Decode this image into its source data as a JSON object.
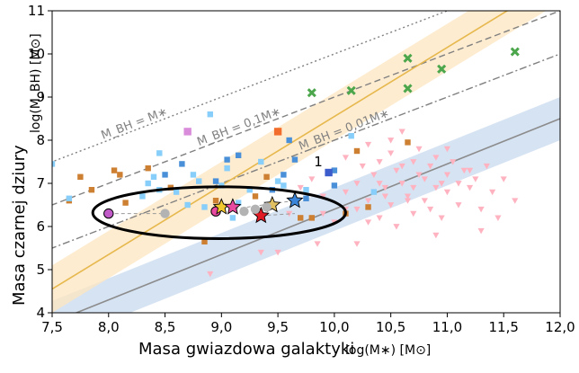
{
  "chart_data": {
    "type": "scatter",
    "title": "",
    "xlabel": "Masa gwiazdowa galaktyki",
    "xlabel_unit": "log(M∗) [M⊙]",
    "ylabel": "Masa czarnej dziury",
    "ylabel_unit": "log(M_BH) [M⊙]",
    "xlim": [
      7.5,
      12.0
    ],
    "ylim": [
      4,
      11
    ],
    "xticks": [
      7.5,
      8.0,
      8.5,
      9.0,
      9.5,
      10.0,
      10.5,
      11.0,
      11.5,
      12.0
    ],
    "xtick_labels": [
      "7,5",
      "8,0",
      "8,5",
      "9,0",
      "9,5",
      "10,0",
      "10,5",
      "11,0",
      "11,5",
      "12,0"
    ],
    "yticks": [
      4,
      5,
      6,
      7,
      8,
      9,
      10,
      11
    ],
    "ytick_labels": [
      "4",
      "5",
      "6",
      "7",
      "8",
      "9",
      "10",
      "11"
    ],
    "colors": {
      "pink": "#ffb3c1",
      "orange": "#cd7f32",
      "lightblue": "#87cefa",
      "blue": "#4a90d9",
      "green": "#4ca64c",
      "gold_line": "#e6b84d",
      "gray_line": "#8c8c8c",
      "orange_band": "#fde5c0",
      "blue_band": "#c8d9ef",
      "violet": "#c05bc8",
      "magenta": "#e84aa0",
      "red_star": "#e01b24",
      "yellow_star": "#f2c82f",
      "lilac": "#d98cd9",
      "orange_square": "#f26d2c",
      "navy": "#3c5ccc"
    },
    "reference_lines": [
      {
        "name": "MBH = M*",
        "label": "M_BH = M∗",
        "offset": 0,
        "style": "dotted"
      },
      {
        "name": "MBH = 0.1M*",
        "label": "M_BH = 0,1M∗",
        "offset": -1,
        "style": "dashed"
      },
      {
        "name": "MBH = 0.01M*",
        "label": "M_BH = 0,01M∗",
        "offset": -2,
        "style": "dashdot"
      }
    ],
    "relations": [
      {
        "name": "gold relation",
        "slope": 1.6,
        "intercept": -7.45,
        "band_halfwidth": 0.55,
        "color": "gold"
      },
      {
        "name": "gray relation",
        "slope": 1.05,
        "intercept": -4.1,
        "band_halfwidth": 0.5,
        "color": "gray"
      }
    ],
    "series": [
      {
        "name": "pink triangles",
        "marker": "triangle-down",
        "color": "pink",
        "points": [
          [
            9.6,
            6.3
          ],
          [
            9.7,
            6.9
          ],
          [
            9.8,
            7.1
          ],
          [
            9.9,
            6.7
          ],
          [
            10.0,
            7.3
          ],
          [
            10.0,
            6.1
          ],
          [
            10.1,
            7.6
          ],
          [
            10.1,
            6.8
          ],
          [
            10.15,
            8.1
          ],
          [
            10.2,
            7.0
          ],
          [
            10.2,
            6.4
          ],
          [
            10.25,
            7.4
          ],
          [
            10.3,
            7.9
          ],
          [
            10.3,
            6.6
          ],
          [
            10.35,
            7.2
          ],
          [
            10.4,
            7.5
          ],
          [
            10.4,
            6.2
          ],
          [
            10.45,
            6.9
          ],
          [
            10.5,
            7.7
          ],
          [
            10.5,
            6.5
          ],
          [
            10.55,
            7.3
          ],
          [
            10.6,
            7.0
          ],
          [
            10.6,
            8.2
          ],
          [
            10.65,
            6.7
          ],
          [
            10.7,
            7.5
          ],
          [
            10.7,
            6.3
          ],
          [
            10.75,
            7.8
          ],
          [
            10.8,
            7.1
          ],
          [
            10.8,
            6.6
          ],
          [
            10.85,
            7.4
          ],
          [
            10.9,
            6.9
          ],
          [
            10.9,
            7.6
          ],
          [
            10.95,
            6.2
          ],
          [
            11.0,
            7.2
          ],
          [
            11.0,
            6.8
          ],
          [
            11.05,
            7.5
          ],
          [
            11.1,
            7.0
          ],
          [
            11.1,
            6.5
          ],
          [
            11.15,
            7.3
          ],
          [
            11.2,
            6.9
          ],
          [
            11.25,
            7.1
          ],
          [
            11.3,
            6.4
          ],
          [
            11.35,
            7.4
          ],
          [
            11.4,
            6.8
          ],
          [
            11.5,
            7.1
          ],
          [
            11.6,
            6.6
          ],
          [
            10.55,
            6.0
          ],
          [
            10.9,
            5.8
          ],
          [
            10.2,
            5.6
          ],
          [
            11.3,
            5.9
          ],
          [
            10.4,
            7.0
          ],
          [
            10.6,
            7.4
          ],
          [
            10.7,
            6.9
          ],
          [
            10.85,
            6.4
          ],
          [
            11.0,
            7.8
          ],
          [
            10.3,
            6.1
          ],
          [
            9.9,
            6.3
          ],
          [
            10.1,
            6.4
          ],
          [
            10.45,
            6.7
          ],
          [
            10.65,
            6.6
          ],
          [
            11.45,
            6.2
          ],
          [
            9.5,
            5.4
          ],
          [
            9.35,
            5.4
          ],
          [
            9.85,
            5.6
          ],
          [
            8.9,
            4.9
          ],
          [
            10.5,
            8.0
          ],
          [
            10.75,
            7.2
          ],
          [
            10.95,
            7.0
          ],
          [
            11.2,
            7.3
          ]
        ]
      },
      {
        "name": "orange squares",
        "marker": "square",
        "color": "orange",
        "points": [
          [
            7.65,
            6.6
          ],
          [
            7.75,
            7.15
          ],
          [
            7.85,
            6.85
          ],
          [
            8.05,
            7.3
          ],
          [
            8.1,
            7.2
          ],
          [
            8.15,
            6.55
          ],
          [
            8.35,
            7.35
          ],
          [
            8.55,
            6.9
          ],
          [
            8.85,
            5.65
          ],
          [
            8.95,
            6.6
          ],
          [
            9.3,
            6.7
          ],
          [
            9.4,
            7.15
          ],
          [
            9.7,
            6.2
          ],
          [
            9.8,
            6.2
          ],
          [
            10.1,
            6.3
          ],
          [
            10.2,
            7.75
          ],
          [
            10.65,
            7.95
          ],
          [
            10.3,
            6.45
          ]
        ]
      },
      {
        "name": "light blue squares",
        "marker": "square",
        "color": "lightblue",
        "points": [
          [
            7.5,
            7.45
          ],
          [
            7.65,
            6.65
          ],
          [
            8.3,
            6.7
          ],
          [
            8.35,
            7.0
          ],
          [
            8.4,
            7.15
          ],
          [
            8.45,
            6.85
          ],
          [
            8.45,
            7.7
          ],
          [
            8.6,
            6.8
          ],
          [
            8.7,
            6.5
          ],
          [
            8.75,
            7.2
          ],
          [
            8.8,
            7.05
          ],
          [
            8.85,
            6.45
          ],
          [
            8.9,
            8.6
          ],
          [
            9.05,
            7.35
          ],
          [
            9.1,
            6.2
          ],
          [
            9.15,
            6.55
          ],
          [
            9.25,
            6.85
          ],
          [
            9.35,
            7.5
          ],
          [
            9.5,
            7.05
          ],
          [
            9.55,
            6.95
          ],
          [
            9.75,
            6.85
          ],
          [
            10.15,
            8.1
          ],
          [
            10.35,
            6.8
          ],
          [
            9.0,
            6.95
          ]
        ]
      },
      {
        "name": "blue squares",
        "marker": "square",
        "color": "blue",
        "points": [
          [
            8.5,
            7.2
          ],
          [
            8.65,
            7.45
          ],
          [
            8.95,
            6.35
          ],
          [
            8.95,
            7.05
          ],
          [
            9.05,
            7.55
          ],
          [
            9.1,
            6.45
          ],
          [
            9.15,
            7.65
          ],
          [
            9.45,
            6.85
          ],
          [
            9.55,
            7.2
          ],
          [
            9.6,
            8.0
          ],
          [
            9.65,
            7.55
          ],
          [
            9.75,
            6.65
          ],
          [
            10.0,
            6.95
          ],
          [
            10.0,
            7.3
          ]
        ]
      },
      {
        "name": "green crosses",
        "marker": "x",
        "color": "green",
        "points": [
          [
            9.8,
            9.1
          ],
          [
            10.15,
            9.15
          ],
          [
            10.65,
            9.9
          ],
          [
            10.65,
            9.2
          ],
          [
            10.95,
            9.65
          ],
          [
            11.6,
            10.05
          ]
        ]
      }
    ],
    "special_points": [
      {
        "name": "lilac square",
        "x": 8.7,
        "y": 8.2,
        "marker": "square",
        "color": "lilac"
      },
      {
        "name": "orange square",
        "x": 9.5,
        "y": 8.2,
        "marker": "square",
        "color": "orange_square"
      },
      {
        "name": "navy square",
        "x": 9.95,
        "y": 7.25,
        "marker": "square",
        "color": "navy"
      },
      {
        "name": "violet circle",
        "x": 8.0,
        "y": 6.3,
        "marker": "circle",
        "color": "violet"
      },
      {
        "name": "gray circle 1",
        "x": 8.5,
        "y": 6.3,
        "marker": "circle",
        "color": "#b3b3b3"
      },
      {
        "name": "magenta circle",
        "x": 8.95,
        "y": 6.35,
        "marker": "circle",
        "color": "magenta"
      },
      {
        "name": "gray circle 2",
        "x": 9.2,
        "y": 6.35,
        "marker": "circle",
        "color": "#b3b3b3"
      },
      {
        "name": "yellow star",
        "x": 9.0,
        "y": 6.45,
        "marker": "star",
        "color": "yellow_star"
      },
      {
        "name": "pink star",
        "x": 9.1,
        "y": 6.45,
        "marker": "star",
        "color": "magenta"
      },
      {
        "name": "red star",
        "x": 9.35,
        "y": 6.25,
        "marker": "star",
        "color": "red_star"
      },
      {
        "name": "tan star",
        "x": 9.45,
        "y": 6.5,
        "marker": "star",
        "color": "#e0c060"
      },
      {
        "name": "blue star",
        "x": 9.65,
        "y": 6.6,
        "marker": "star",
        "color": "#3a85d9"
      },
      {
        "name": "gray circle 3",
        "x": 9.3,
        "y": 6.4,
        "marker": "circle",
        "color": "#b3b3b3"
      },
      {
        "name": "gray circle 4",
        "x": 9.4,
        "y": 6.45,
        "marker": "circle",
        "color": "#b3b3b3"
      }
    ],
    "highlight_ellipse": {
      "cx": 8.98,
      "cy": 6.32,
      "rx": 1.12,
      "ry": 0.6
    },
    "annotation": {
      "text": "1",
      "x": 9.82,
      "y": 7.4
    }
  }
}
